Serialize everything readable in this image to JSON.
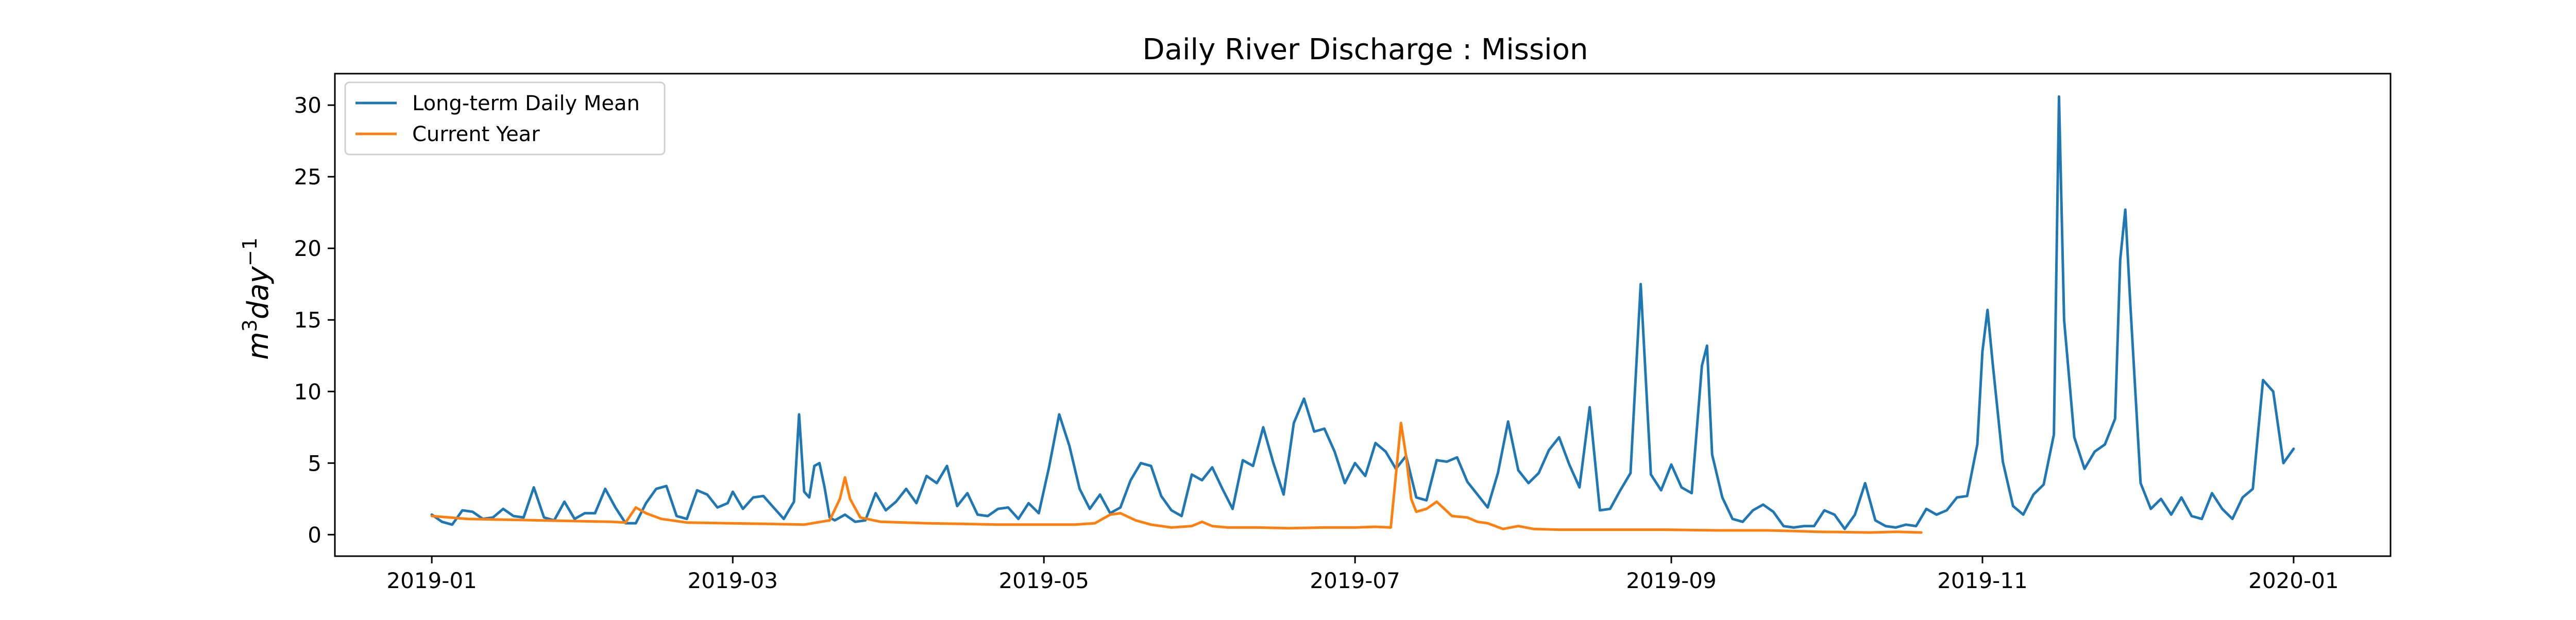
{
  "chart_data": {
    "type": "line",
    "title": "Daily River Discharge : Mission",
    "xlabel": "",
    "ylabel_base": "m",
    "ylabel_sup1": "3",
    "ylabel_mid": "day",
    "ylabel_sup2": "−1",
    "xlim": [
      "2018-12-13",
      "2020-01-20"
    ],
    "ylim": [
      -1.5,
      32.2
    ],
    "x_ticks": [
      "2019-01-01",
      "2019-03-01",
      "2019-05-01",
      "2019-07-01",
      "2019-09-01",
      "2019-11-01",
      "2020-01-01"
    ],
    "x_tick_labels": [
      "2019-01",
      "2019-03",
      "2019-05",
      "2019-07",
      "2019-09",
      "2019-11",
      "2020-01"
    ],
    "y_ticks": [
      0,
      5,
      10,
      15,
      20,
      25,
      30
    ],
    "y_tick_labels": [
      "0",
      "5",
      "10",
      "15",
      "20",
      "25",
      "30"
    ],
    "grid": false,
    "legend_position": "top-left",
    "colors": {
      "long_term": "#1f77b4",
      "current": "#ff7f0e"
    },
    "series": [
      {
        "name": "Long-term Daily Mean",
        "color": "#1f77b4",
        "points": [
          [
            "2019-01-01",
            1.4
          ],
          [
            "2019-01-03",
            0.9
          ],
          [
            "2019-01-05",
            0.7
          ],
          [
            "2019-01-07",
            1.7
          ],
          [
            "2019-01-09",
            1.6
          ],
          [
            "2019-01-11",
            1.1
          ],
          [
            "2019-01-13",
            1.2
          ],
          [
            "2019-01-15",
            1.8
          ],
          [
            "2019-01-17",
            1.3
          ],
          [
            "2019-01-19",
            1.2
          ],
          [
            "2019-01-21",
            3.3
          ],
          [
            "2019-01-23",
            1.2
          ],
          [
            "2019-01-25",
            1.0
          ],
          [
            "2019-01-27",
            2.3
          ],
          [
            "2019-01-29",
            1.1
          ],
          [
            "2019-01-31",
            1.5
          ],
          [
            "2019-02-02",
            1.5
          ],
          [
            "2019-02-04",
            3.2
          ],
          [
            "2019-02-06",
            1.9
          ],
          [
            "2019-02-08",
            0.8
          ],
          [
            "2019-02-10",
            0.8
          ],
          [
            "2019-02-12",
            2.2
          ],
          [
            "2019-02-14",
            3.2
          ],
          [
            "2019-02-16",
            3.4
          ],
          [
            "2019-02-18",
            1.3
          ],
          [
            "2019-02-20",
            1.1
          ],
          [
            "2019-02-22",
            3.1
          ],
          [
            "2019-02-24",
            2.8
          ],
          [
            "2019-02-26",
            1.9
          ],
          [
            "2019-02-28",
            2.2
          ],
          [
            "2019-03-01",
            3.0
          ],
          [
            "2019-03-03",
            1.8
          ],
          [
            "2019-03-05",
            2.6
          ],
          [
            "2019-03-07",
            2.7
          ],
          [
            "2019-03-09",
            1.9
          ],
          [
            "2019-03-11",
            1.1
          ],
          [
            "2019-03-13",
            2.3
          ],
          [
            "2019-03-14",
            8.4
          ],
          [
            "2019-03-15",
            3.0
          ],
          [
            "2019-03-16",
            2.6
          ],
          [
            "2019-03-17",
            4.8
          ],
          [
            "2019-03-18",
            5.0
          ],
          [
            "2019-03-19",
            3.3
          ],
          [
            "2019-03-20",
            1.2
          ],
          [
            "2019-03-21",
            1.0
          ],
          [
            "2019-03-23",
            1.4
          ],
          [
            "2019-03-25",
            0.9
          ],
          [
            "2019-03-27",
            1.0
          ],
          [
            "2019-03-29",
            2.9
          ],
          [
            "2019-03-31",
            1.7
          ],
          [
            "2019-04-02",
            2.3
          ],
          [
            "2019-04-04",
            3.2
          ],
          [
            "2019-04-06",
            2.2
          ],
          [
            "2019-04-08",
            4.1
          ],
          [
            "2019-04-10",
            3.6
          ],
          [
            "2019-04-12",
            4.8
          ],
          [
            "2019-04-14",
            2.0
          ],
          [
            "2019-04-16",
            2.9
          ],
          [
            "2019-04-18",
            1.4
          ],
          [
            "2019-04-20",
            1.3
          ],
          [
            "2019-04-22",
            1.8
          ],
          [
            "2019-04-24",
            1.9
          ],
          [
            "2019-04-26",
            1.1
          ],
          [
            "2019-04-28",
            2.2
          ],
          [
            "2019-04-30",
            1.5
          ],
          [
            "2019-05-02",
            4.7
          ],
          [
            "2019-05-04",
            8.4
          ],
          [
            "2019-05-06",
            6.2
          ],
          [
            "2019-05-08",
            3.2
          ],
          [
            "2019-05-10",
            1.8
          ],
          [
            "2019-05-12",
            2.8
          ],
          [
            "2019-05-14",
            1.5
          ],
          [
            "2019-05-16",
            1.9
          ],
          [
            "2019-05-18",
            3.8
          ],
          [
            "2019-05-20",
            5.0
          ],
          [
            "2019-05-22",
            4.8
          ],
          [
            "2019-05-24",
            2.7
          ],
          [
            "2019-05-26",
            1.7
          ],
          [
            "2019-05-28",
            1.3
          ],
          [
            "2019-05-30",
            4.2
          ],
          [
            "2019-06-01",
            3.8
          ],
          [
            "2019-06-03",
            4.7
          ],
          [
            "2019-06-05",
            3.2
          ],
          [
            "2019-06-07",
            1.8
          ],
          [
            "2019-06-09",
            5.2
          ],
          [
            "2019-06-11",
            4.8
          ],
          [
            "2019-06-13",
            7.5
          ],
          [
            "2019-06-15",
            5.0
          ],
          [
            "2019-06-17",
            2.8
          ],
          [
            "2019-06-19",
            7.8
          ],
          [
            "2019-06-21",
            9.5
          ],
          [
            "2019-06-23",
            7.2
          ],
          [
            "2019-06-25",
            7.4
          ],
          [
            "2019-06-27",
            5.8
          ],
          [
            "2019-06-29",
            3.6
          ],
          [
            "2019-07-01",
            5.0
          ],
          [
            "2019-07-03",
            4.1
          ],
          [
            "2019-07-05",
            6.4
          ],
          [
            "2019-07-07",
            5.8
          ],
          [
            "2019-07-09",
            4.6
          ],
          [
            "2019-07-11",
            5.5
          ],
          [
            "2019-07-13",
            2.6
          ],
          [
            "2019-07-15",
            2.4
          ],
          [
            "2019-07-17",
            5.2
          ],
          [
            "2019-07-19",
            5.1
          ],
          [
            "2019-07-21",
            5.4
          ],
          [
            "2019-07-23",
            3.7
          ],
          [
            "2019-07-25",
            2.8
          ],
          [
            "2019-07-27",
            1.9
          ],
          [
            "2019-07-29",
            4.3
          ],
          [
            "2019-07-31",
            7.9
          ],
          [
            "2019-08-02",
            4.5
          ],
          [
            "2019-08-04",
            3.6
          ],
          [
            "2019-08-06",
            4.3
          ],
          [
            "2019-08-08",
            5.9
          ],
          [
            "2019-08-10",
            6.8
          ],
          [
            "2019-08-12",
            4.9
          ],
          [
            "2019-08-14",
            3.3
          ],
          [
            "2019-08-16",
            8.9
          ],
          [
            "2019-08-18",
            1.7
          ],
          [
            "2019-08-20",
            1.8
          ],
          [
            "2019-08-22",
            3.1
          ],
          [
            "2019-08-24",
            4.3
          ],
          [
            "2019-08-26",
            17.5
          ],
          [
            "2019-08-28",
            4.2
          ],
          [
            "2019-08-30",
            3.1
          ],
          [
            "2019-09-01",
            4.9
          ],
          [
            "2019-09-03",
            3.3
          ],
          [
            "2019-09-05",
            2.9
          ],
          [
            "2019-09-07",
            11.8
          ],
          [
            "2019-09-08",
            13.2
          ],
          [
            "2019-09-09",
            5.6
          ],
          [
            "2019-09-11",
            2.6
          ],
          [
            "2019-09-13",
            1.1
          ],
          [
            "2019-09-15",
            0.9
          ],
          [
            "2019-09-17",
            1.7
          ],
          [
            "2019-09-19",
            2.1
          ],
          [
            "2019-09-21",
            1.6
          ],
          [
            "2019-09-23",
            0.6
          ],
          [
            "2019-09-25",
            0.5
          ],
          [
            "2019-09-27",
            0.6
          ],
          [
            "2019-09-29",
            0.6
          ],
          [
            "2019-10-01",
            1.7
          ],
          [
            "2019-10-03",
            1.4
          ],
          [
            "2019-10-05",
            0.4
          ],
          [
            "2019-10-07",
            1.4
          ],
          [
            "2019-10-09",
            3.6
          ],
          [
            "2019-10-11",
            1.0
          ],
          [
            "2019-10-13",
            0.6
          ],
          [
            "2019-10-15",
            0.5
          ],
          [
            "2019-10-17",
            0.7
          ],
          [
            "2019-10-19",
            0.6
          ],
          [
            "2019-10-21",
            1.8
          ],
          [
            "2019-10-23",
            1.4
          ],
          [
            "2019-10-25",
            1.7
          ],
          [
            "2019-10-27",
            2.6
          ],
          [
            "2019-10-29",
            2.7
          ],
          [
            "2019-10-31",
            6.3
          ],
          [
            "2019-11-01",
            12.8
          ],
          [
            "2019-11-02",
            15.7
          ],
          [
            "2019-11-03",
            12.0
          ],
          [
            "2019-11-05",
            5.1
          ],
          [
            "2019-11-07",
            2.0
          ],
          [
            "2019-11-09",
            1.4
          ],
          [
            "2019-11-11",
            2.8
          ],
          [
            "2019-11-13",
            3.5
          ],
          [
            "2019-11-15",
            7.0
          ],
          [
            "2019-11-16",
            30.6
          ],
          [
            "2019-11-17",
            15.0
          ],
          [
            "2019-11-19",
            6.8
          ],
          [
            "2019-11-21",
            4.6
          ],
          [
            "2019-11-23",
            5.8
          ],
          [
            "2019-11-25",
            6.3
          ],
          [
            "2019-11-27",
            8.1
          ],
          [
            "2019-11-28",
            19.2
          ],
          [
            "2019-11-29",
            22.7
          ],
          [
            "2019-11-30",
            16.0
          ],
          [
            "2019-12-02",
            3.6
          ],
          [
            "2019-12-04",
            1.8
          ],
          [
            "2019-12-06",
            2.5
          ],
          [
            "2019-12-08",
            1.4
          ],
          [
            "2019-12-10",
            2.6
          ],
          [
            "2019-12-12",
            1.3
          ],
          [
            "2019-12-14",
            1.1
          ],
          [
            "2019-12-16",
            2.9
          ],
          [
            "2019-12-18",
            1.8
          ],
          [
            "2019-12-20",
            1.1
          ],
          [
            "2019-12-22",
            2.6
          ],
          [
            "2019-12-24",
            3.2
          ],
          [
            "2019-12-26",
            10.8
          ],
          [
            "2019-12-28",
            10.0
          ],
          [
            "2019-12-30",
            5.0
          ],
          [
            "2020-01-01",
            6.0
          ]
        ]
      },
      {
        "name": "Current Year",
        "color": "#ff7f0e",
        "points": [
          [
            "2019-01-01",
            1.3
          ],
          [
            "2019-01-08",
            1.1
          ],
          [
            "2019-01-15",
            1.05
          ],
          [
            "2019-01-22",
            1.0
          ],
          [
            "2019-01-29",
            0.95
          ],
          [
            "2019-02-05",
            0.9
          ],
          [
            "2019-02-08",
            0.85
          ],
          [
            "2019-02-10",
            1.9
          ],
          [
            "2019-02-12",
            1.5
          ],
          [
            "2019-02-15",
            1.1
          ],
          [
            "2019-02-20",
            0.85
          ],
          [
            "2019-02-28",
            0.8
          ],
          [
            "2019-03-08",
            0.75
          ],
          [
            "2019-03-15",
            0.7
          ],
          [
            "2019-03-20",
            1.0
          ],
          [
            "2019-03-22",
            2.5
          ],
          [
            "2019-03-23",
            4.0
          ],
          [
            "2019-03-24",
            2.5
          ],
          [
            "2019-03-26",
            1.2
          ],
          [
            "2019-03-30",
            0.9
          ],
          [
            "2019-04-08",
            0.8
          ],
          [
            "2019-04-15",
            0.75
          ],
          [
            "2019-04-22",
            0.7
          ],
          [
            "2019-04-30",
            0.7
          ],
          [
            "2019-05-07",
            0.7
          ],
          [
            "2019-05-11",
            0.8
          ],
          [
            "2019-05-14",
            1.4
          ],
          [
            "2019-05-16",
            1.5
          ],
          [
            "2019-05-19",
            1.0
          ],
          [
            "2019-05-22",
            0.7
          ],
          [
            "2019-05-26",
            0.5
          ],
          [
            "2019-05-30",
            0.6
          ],
          [
            "2019-06-01",
            0.9
          ],
          [
            "2019-06-03",
            0.6
          ],
          [
            "2019-06-06",
            0.5
          ],
          [
            "2019-06-12",
            0.5
          ],
          [
            "2019-06-18",
            0.45
          ],
          [
            "2019-06-25",
            0.5
          ],
          [
            "2019-07-01",
            0.5
          ],
          [
            "2019-07-05",
            0.55
          ],
          [
            "2019-07-08",
            0.5
          ],
          [
            "2019-07-10",
            7.8
          ],
          [
            "2019-07-11",
            5.5
          ],
          [
            "2019-07-12",
            2.5
          ],
          [
            "2019-07-13",
            1.6
          ],
          [
            "2019-07-15",
            1.8
          ],
          [
            "2019-07-17",
            2.3
          ],
          [
            "2019-07-20",
            1.3
          ],
          [
            "2019-07-23",
            1.2
          ],
          [
            "2019-07-25",
            0.9
          ],
          [
            "2019-07-27",
            0.8
          ],
          [
            "2019-07-30",
            0.4
          ],
          [
            "2019-08-02",
            0.6
          ],
          [
            "2019-08-05",
            0.4
          ],
          [
            "2019-08-10",
            0.35
          ],
          [
            "2019-08-20",
            0.35
          ],
          [
            "2019-08-31",
            0.35
          ],
          [
            "2019-09-10",
            0.3
          ],
          [
            "2019-09-20",
            0.3
          ],
          [
            "2019-09-25",
            0.25
          ],
          [
            "2019-09-30",
            0.2
          ],
          [
            "2019-10-10",
            0.15
          ],
          [
            "2019-10-15",
            0.2
          ],
          [
            "2019-10-20",
            0.15
          ]
        ]
      }
    ]
  }
}
